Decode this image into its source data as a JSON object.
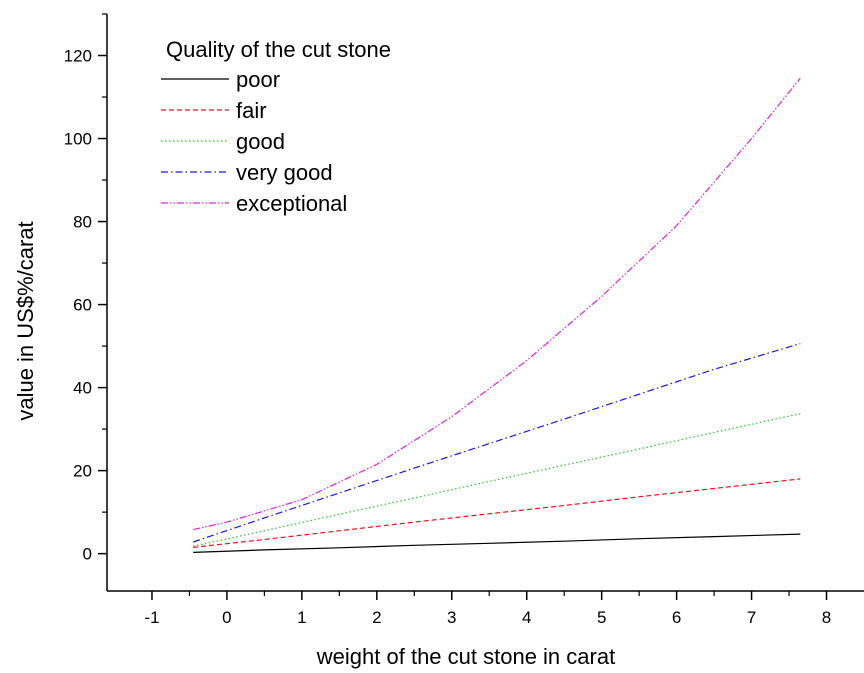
{
  "chart_data": {
    "type": "line",
    "title": "",
    "xlabel": "weight of the cut stone in carat",
    "ylabel": "value in US$%/carat",
    "xlim": [
      -1.6,
      8.5
    ],
    "ylim": [
      -9,
      130
    ],
    "xticks": [
      -1,
      0,
      1,
      2,
      3,
      4,
      5,
      6,
      7,
      8
    ],
    "yticks": [
      0,
      20,
      40,
      60,
      80,
      100,
      120
    ],
    "grid": false,
    "legend": {
      "title": "Quality of the cut stone",
      "position": "top-left"
    },
    "series": [
      {
        "name": "poor",
        "color": "#000000",
        "dash": "solid",
        "x": [
          -0.45,
          0.5,
          1.5,
          2.5,
          3.5,
          4.5,
          5.5,
          6.5,
          7.65
        ],
        "y": [
          0.3,
          0.9,
          1.4,
          2.0,
          2.5,
          3.0,
          3.6,
          4.1,
          4.7
        ]
      },
      {
        "name": "fair",
        "color": "#e8141a",
        "dash": "dashed",
        "x": [
          -0.45,
          0.5,
          1.5,
          2.5,
          3.5,
          4.5,
          5.5,
          6.5,
          7.65
        ],
        "y": [
          1.5,
          3.4,
          5.5,
          7.6,
          9.6,
          11.6,
          13.7,
          15.7,
          18.0
        ]
      },
      {
        "name": "good",
        "color": "#22cc22",
        "dash": "dotted",
        "x": [
          -0.45,
          0.5,
          1.5,
          2.5,
          3.5,
          4.5,
          5.5,
          6.5,
          7.65
        ],
        "y": [
          1.8,
          5.5,
          9.5,
          13.4,
          17.4,
          21.3,
          25.2,
          29.2,
          33.7
        ]
      },
      {
        "name": "very good",
        "color": "#1a1ad6",
        "dash": "dashdot",
        "x": [
          -0.45,
          0.5,
          1.5,
          2.5,
          3.5,
          4.5,
          5.5,
          6.5,
          7.65
        ],
        "y": [
          2.8,
          8.6,
          14.6,
          20.6,
          26.5,
          32.4,
          38.4,
          44.4,
          50.6
        ]
      },
      {
        "name": "exceptional",
        "color": "#e020e0",
        "dash": "dashdotdot",
        "x": [
          -0.45,
          0.0,
          1.0,
          2.0,
          3.0,
          4.0,
          5.0,
          6.0,
          7.0,
          7.65
        ],
        "y": [
          5.8,
          7.6,
          13.0,
          21.5,
          33.0,
          46.5,
          62.0,
          79.0,
          100.0,
          114.5
        ]
      }
    ]
  }
}
